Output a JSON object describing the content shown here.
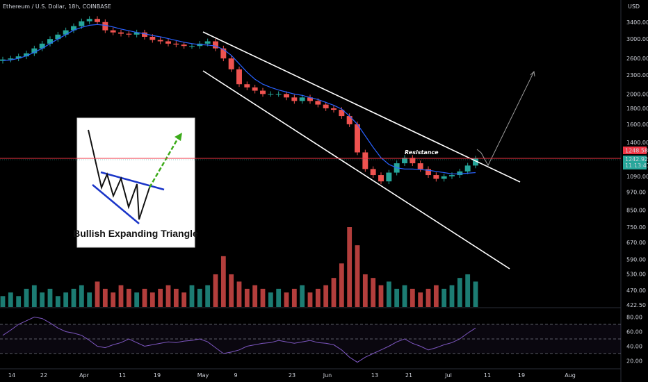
{
  "header": {
    "title": "Ethereum / U.S. Dollar, 18h, COINBASE",
    "currency": "USD"
  },
  "price_badges": [
    {
      "text": "1248.58",
      "color": "#f23645"
    },
    {
      "text": "1242.92",
      "color": "#26a69a"
    },
    {
      "text": "11:13:41",
      "color": "#26a69a"
    }
  ],
  "annotations": {
    "resistance": "Resistance",
    "inset_caption": "Bullish Expanding Triangle"
  },
  "colors": {
    "up": "#26a69a",
    "down": "#ef5350",
    "ma": "#2962ff",
    "trendline": "#ffffff",
    "rsi": "#7e57c2",
    "background": "#000000"
  },
  "chart_data": [
    {
      "type": "line",
      "title": "Ethereum / U.S. Dollar, 18h, COINBASE",
      "x_ticks": [
        "14",
        "22",
        "Apr",
        "11",
        "19",
        "May",
        "9",
        "23",
        "Jun",
        "13",
        "21",
        "Jul",
        "11",
        "19",
        "Aug"
      ],
      "y_ticks": [
        3400,
        3000,
        2600,
        2300,
        2000,
        1800,
        1600,
        1400,
        1090,
        970,
        850,
        750,
        670,
        590,
        530,
        470,
        422.5
      ],
      "y_scale": "log",
      "ylim": [
        420,
        3900
      ],
      "series": [
        {
          "kind": "price_close",
          "values": [
            2580,
            2600,
            2640,
            2700,
            2800,
            2900,
            3000,
            3100,
            3200,
            3300,
            3420,
            3480,
            3400,
            3200,
            3150,
            3120,
            3100,
            3150,
            3050,
            2980,
            2950,
            2900,
            2880,
            2850,
            2850,
            2900,
            2950,
            2800,
            2600,
            2400,
            2150,
            2100,
            2050,
            2000,
            2000,
            2000,
            1950,
            1900,
            1950,
            1900,
            1850,
            1800,
            1780,
            1700,
            1600,
            1300,
            1150,
            1100,
            1050,
            1120,
            1200,
            1250,
            1200,
            1150,
            1100,
            1070,
            1090,
            1100,
            1130,
            1180,
            1242.92
          ]
        },
        {
          "kind": "moving_average",
          "values": [
            2560,
            2570,
            2600,
            2650,
            2720,
            2800,
            2900,
            3000,
            3100,
            3200,
            3270,
            3320,
            3340,
            3320,
            3280,
            3230,
            3190,
            3150,
            3120,
            3080,
            3050,
            3010,
            2970,
            2930,
            2900,
            2880,
            2870,
            2850,
            2780,
            2660,
            2500,
            2350,
            2230,
            2150,
            2100,
            2060,
            2030,
            2000,
            1980,
            1950,
            1920,
            1880,
            1840,
            1790,
            1700,
            1600,
            1470,
            1350,
            1250,
            1190,
            1160,
            1150,
            1150,
            1145,
            1140,
            1130,
            1120,
            1110,
            1110,
            1115,
            1120
          ]
        }
      ],
      "levels": [
        {
          "name": "resistance",
          "value": 1248.58
        }
      ]
    },
    {
      "type": "bar",
      "kind": "volume",
      "values": [
        3,
        4,
        3,
        5,
        6,
        4,
        5,
        3,
        4,
        5,
        6,
        4,
        7,
        5,
        4,
        6,
        5,
        4,
        5,
        4,
        5,
        6,
        5,
        4,
        6,
        5,
        6,
        9,
        14,
        9,
        7,
        5,
        6,
        5,
        4,
        5,
        4,
        5,
        6,
        4,
        5,
        6,
        8,
        12,
        22,
        17,
        9,
        8,
        6,
        7,
        5,
        6,
        5,
        4,
        5,
        6,
        5,
        6,
        8,
        9,
        7
      ]
    },
    {
      "type": "line",
      "kind": "rsi",
      "y_ticks": [
        80.0,
        60.0,
        40.0,
        20.0
      ],
      "ylim": [
        10,
        90
      ],
      "bands": [
        70,
        50,
        30
      ],
      "values": [
        55,
        62,
        70,
        75,
        80,
        78,
        72,
        65,
        60,
        58,
        55,
        48,
        40,
        38,
        42,
        45,
        50,
        45,
        40,
        42,
        44,
        46,
        45,
        47,
        48,
        50,
        46,
        38,
        30,
        32,
        35,
        40,
        42,
        44,
        45,
        48,
        46,
        44,
        46,
        48,
        45,
        44,
        42,
        35,
        25,
        18,
        25,
        30,
        35,
        40,
        46,
        50,
        44,
        40,
        35,
        38,
        42,
        45,
        50,
        58,
        65
      ]
    }
  ]
}
